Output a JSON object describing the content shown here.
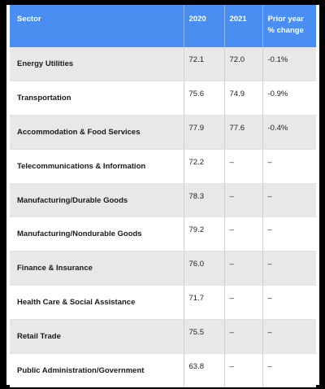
{
  "table": {
    "headers": {
      "sector": "Sector",
      "y2020": "2020",
      "y2021": "2021",
      "change_line1": "Prior year",
      "change_line2": "% change"
    },
    "rows": [
      {
        "sector": "Energy Utilities",
        "y2020": "72.1",
        "y2021": "72.0",
        "change": "-0.1%"
      },
      {
        "sector": "Transportation",
        "y2020": "75.6",
        "y2021": "74.9",
        "change": "-0.9%"
      },
      {
        "sector": "Accommodation & Food Services",
        "y2020": "77.9",
        "y2021": "77.6",
        "change": "-0.4%"
      },
      {
        "sector": "Telecommunications & Information",
        "y2020": "72.2",
        "y2021": "–",
        "change": "–"
      },
      {
        "sector": "Manufacturing/Durable Goods",
        "y2020": "78.3",
        "y2021": "–",
        "change": "–"
      },
      {
        "sector": "Manufacturing/Nondurable Goods",
        "y2020": "79.2",
        "y2021": "–",
        "change": "–"
      },
      {
        "sector": "Finance & Insurance",
        "y2020": "76.0",
        "y2021": "–",
        "change": "–"
      },
      {
        "sector": "Health Care & Social Assistance",
        "y2020": "71.7",
        "y2021": "–",
        "change": "–"
      },
      {
        "sector": "Retail Trade",
        "y2020": "75.5",
        "y2021": "–",
        "change": "–"
      },
      {
        "sector": "Public Administration/Government",
        "y2020": "63.8",
        "y2021": "–",
        "change": "–"
      }
    ]
  },
  "colors": {
    "header_bg": "#4a8ef2",
    "row_alt_bg": "#e8e8e8",
    "row_bg": "#ffffff"
  }
}
